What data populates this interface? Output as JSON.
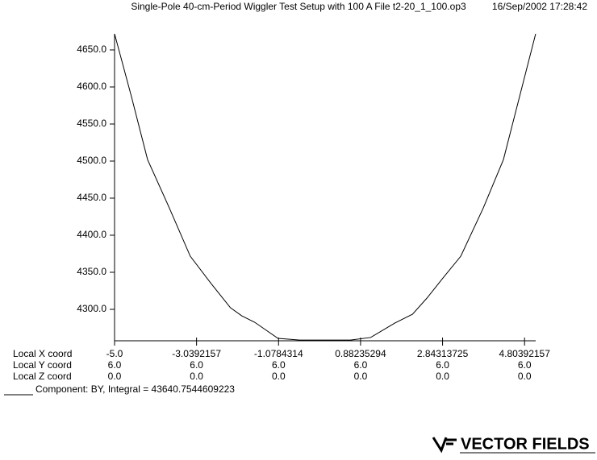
{
  "chart_data": {
    "type": "line",
    "title": "Single-Pole 40-cm-Period Wiggler Test Setup with 100 A  File t2-20_1_100.op3",
    "date": "16/Sep/2002 17:28:42",
    "x": [
      -5,
      -4.596,
      -4.211,
      -3.691,
      -3.19,
      -2.69,
      -2.228,
      -1.958,
      -1.65,
      -1.092,
      -0.572,
      0.641,
      1.122,
      1.7,
      2.124,
      2.47,
      2.855,
      3.279,
      3.818,
      4.299,
      4.684,
      5.069
    ],
    "series": [
      {
        "color": "#000000",
        "values": [
          4671.7,
          4586.9,
          4502.1,
          4436.9,
          4371.7,
          4334.7,
          4302.1,
          4291.2,
          4282.6,
          4260.8,
          4258.5,
          4258.5,
          4262.0,
          4281.5,
          4293.4,
          4315.2,
          4342.4,
          4371.7,
          4436.9,
          4502.1,
          4586.9,
          4671.7
        ]
      }
    ],
    "xlim": [
      -5,
      5.07
    ],
    "ylim": [
      4257.6,
      4671.7
    ],
    "xticks": [
      {
        "value": -5,
        "label": "-5.0"
      },
      -3.0392157,
      -1.0784314,
      0.88235294,
      2.84313725,
      4.80392157
    ],
    "yticks": [
      {
        "value": 4300,
        "label": "4300.0"
      },
      {
        "value": 4350,
        "label": "4350.0"
      },
      {
        "value": 4400,
        "label": "4400.0"
      },
      {
        "value": 4450,
        "label": "4450.0"
      },
      {
        "value": 4500,
        "label": "4500.0"
      },
      {
        "value": 4550,
        "label": "4550.0"
      },
      {
        "value": 4600,
        "label": "4600.0"
      },
      {
        "value": 4650,
        "label": "4650.0"
      }
    ],
    "row_labels": [
      "Local X coord",
      "Local Y coord",
      "Local Z coord"
    ],
    "local_y": [
      "6.0",
      "6.0",
      "6.0",
      "6.0",
      "6.0",
      "6.0"
    ],
    "local_z": [
      "0.0",
      "0.0",
      "0.0",
      "0.0",
      "0.0",
      "0.0"
    ],
    "component": "Component:   BY, Integral = 43640.7544609223",
    "logo": "VECTOR FIELDS"
  }
}
